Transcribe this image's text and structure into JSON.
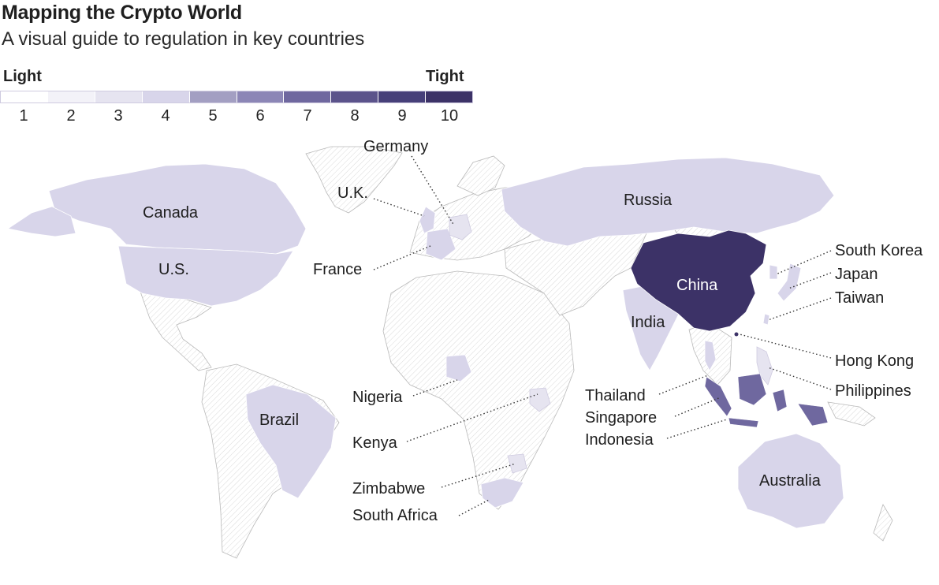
{
  "title": "Mapping the Crypto World",
  "subtitle": "A visual guide to regulation in key countries",
  "legend": {
    "low_label": "Light",
    "high_label": "Tight",
    "levels": [
      "1",
      "2",
      "3",
      "4",
      "5",
      "6",
      "7",
      "8",
      "9",
      "10"
    ],
    "colors": [
      "#ffffff",
      "#f3f2f8",
      "#e6e4f0",
      "#d8d5ea",
      "#a39fc2",
      "#8c86b6",
      "#6f689f",
      "#5b538b",
      "#463f79",
      "#3c3267"
    ]
  },
  "countries": {
    "canada": "Canada",
    "us": "U.S.",
    "brazil": "Brazil",
    "uk": "U.K.",
    "germany": "Germany",
    "france": "France",
    "russia": "Russia",
    "china": "China",
    "india": "India",
    "south_korea": "South Korea",
    "japan": "Japan",
    "taiwan": "Taiwan",
    "hong_kong": "Hong Kong",
    "philippines": "Philippines",
    "thailand": "Thailand",
    "singapore": "Singapore",
    "indonesia": "Indonesia",
    "australia": "Australia",
    "nigeria": "Nigeria",
    "kenya": "Kenya",
    "zimbabwe": "Zimbabwe",
    "south_africa": "South Africa"
  }
}
